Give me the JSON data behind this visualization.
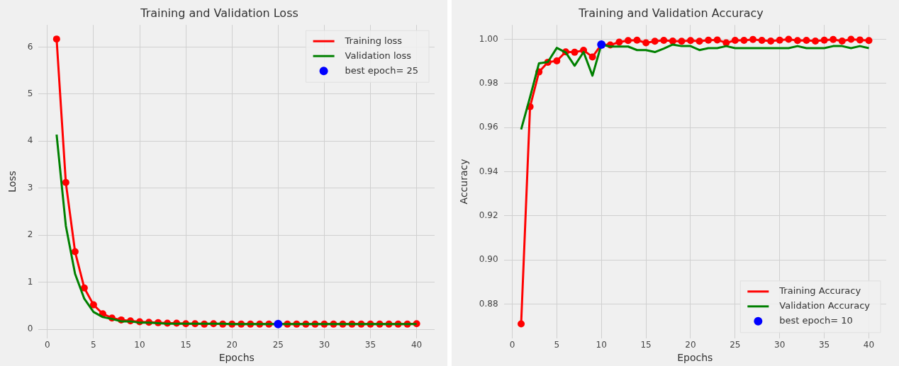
{
  "chart_data": [
    {
      "type": "line",
      "title": "Training and Validation Loss",
      "xlabel": "Epochs",
      "ylabel": "Loss",
      "x": [
        1,
        2,
        3,
        4,
        5,
        6,
        7,
        8,
        9,
        10,
        11,
        12,
        13,
        14,
        15,
        16,
        17,
        18,
        19,
        20,
        21,
        22,
        23,
        24,
        25,
        26,
        27,
        28,
        29,
        30,
        31,
        32,
        33,
        34,
        35,
        36,
        37,
        38,
        39,
        40
      ],
      "series": [
        {
          "name": "Training loss",
          "color": "#ff0000",
          "marker": "circle",
          "values": [
            6.17,
            3.12,
            1.65,
            0.88,
            0.52,
            0.33,
            0.24,
            0.2,
            0.18,
            0.16,
            0.15,
            0.14,
            0.13,
            0.13,
            0.12,
            0.12,
            0.11,
            0.12,
            0.11,
            0.11,
            0.11,
            0.11,
            0.11,
            0.11,
            0.11,
            0.11,
            0.11,
            0.11,
            0.11,
            0.11,
            0.11,
            0.11,
            0.11,
            0.11,
            0.11,
            0.11,
            0.11,
            0.11,
            0.11,
            0.12
          ]
        },
        {
          "name": "Validation loss",
          "color": "#008000",
          "marker": "none",
          "values": [
            4.14,
            2.2,
            1.18,
            0.65,
            0.37,
            0.26,
            0.22,
            0.17,
            0.17,
            0.14,
            0.14,
            0.13,
            0.12,
            0.12,
            0.12,
            0.12,
            0.12,
            0.12,
            0.12,
            0.11,
            0.11,
            0.11,
            0.11,
            0.11,
            0.11,
            0.11,
            0.11,
            0.11,
            0.11,
            0.11,
            0.11,
            0.11,
            0.11,
            0.11,
            0.11,
            0.11,
            0.11,
            0.11,
            0.11,
            0.11
          ]
        },
        {
          "name": "best epoch= 25",
          "type": "scatter",
          "color": "#0000ff",
          "marker": "circle",
          "x": [
            25
          ],
          "values": [
            0.11
          ]
        }
      ],
      "xlim": [
        -0.95,
        41.95
      ],
      "xticks": [
        0,
        5,
        10,
        15,
        20,
        25,
        30,
        35,
        40
      ],
      "ylim": [
        -0.19,
        6.47
      ],
      "yticks": [
        0,
        1,
        2,
        3,
        4,
        5,
        6
      ],
      "grid": true,
      "legend": "top right",
      "line_style": "solid"
    },
    {
      "type": "line",
      "title": "Training and Validation Accuracy",
      "xlabel": "Epochs",
      "ylabel": "Accuracy",
      "x": [
        1,
        2,
        3,
        4,
        5,
        6,
        7,
        8,
        9,
        10,
        11,
        12,
        13,
        14,
        15,
        16,
        17,
        18,
        19,
        20,
        21,
        22,
        23,
        24,
        25,
        26,
        27,
        28,
        29,
        30,
        31,
        32,
        33,
        34,
        35,
        36,
        37,
        38,
        39,
        40
      ],
      "series": [
        {
          "name": "Training Accuracy",
          "color": "#ff0000",
          "marker": "circle",
          "values": [
            0.871,
            0.9694,
            0.9852,
            0.9896,
            0.9902,
            0.9943,
            0.9941,
            0.995,
            0.992,
            0.9976,
            0.9974,
            0.9987,
            0.9994,
            0.9996,
            0.9984,
            0.9991,
            0.9995,
            0.9992,
            0.9991,
            0.9994,
            0.9991,
            0.9996,
            0.9997,
            0.9984,
            0.9995,
            0.9995,
            0.9999,
            0.9995,
            0.9992,
            0.9996,
            1.0,
            0.9994,
            0.9995,
            0.9992,
            0.9996,
            0.9999,
            0.9992,
            1.0,
            0.9997,
            0.9994
          ]
        },
        {
          "name": "Validation Accuracy",
          "color": "#008000",
          "marker": "none",
          "values": [
            0.9591,
            0.9738,
            0.9891,
            0.9897,
            0.9961,
            0.994,
            0.988,
            0.9942,
            0.9835,
            0.9976,
            0.9967,
            0.9967,
            0.9967,
            0.9951,
            0.9951,
            0.9942,
            0.9958,
            0.9976,
            0.9969,
            0.9969,
            0.9951,
            0.996,
            0.996,
            0.9969,
            0.996,
            0.996,
            0.996,
            0.996,
            0.996,
            0.996,
            0.996,
            0.9969,
            0.996,
            0.996,
            0.996,
            0.9969,
            0.9969,
            0.996,
            0.9969,
            0.996
          ]
        },
        {
          "name": "best epoch= 10",
          "type": "scatter",
          "color": "#0000ff",
          "marker": "circle",
          "x": [
            10
          ],
          "values": [
            0.9976
          ]
        }
      ],
      "xlim": [
        -0.95,
        41.95
      ],
      "xticks": [
        0,
        5,
        10,
        15,
        20,
        25,
        30,
        35,
        40
      ],
      "ylim": [
        0.8645,
        1.0065
      ],
      "yticks": [
        {
          "value": 0.88,
          "label": "0.88"
        },
        {
          "value": 0.9,
          "label": "0.90"
        },
        {
          "value": 0.92,
          "label": "0.92"
        },
        {
          "value": 0.94,
          "label": "0.94"
        },
        {
          "value": 0.96,
          "label": "0.96"
        },
        {
          "value": 0.98,
          "label": "0.98"
        },
        {
          "value": 1.0,
          "label": "1.00"
        }
      ],
      "grid": true,
      "legend": "bottom right",
      "line_style": "solid"
    }
  ]
}
